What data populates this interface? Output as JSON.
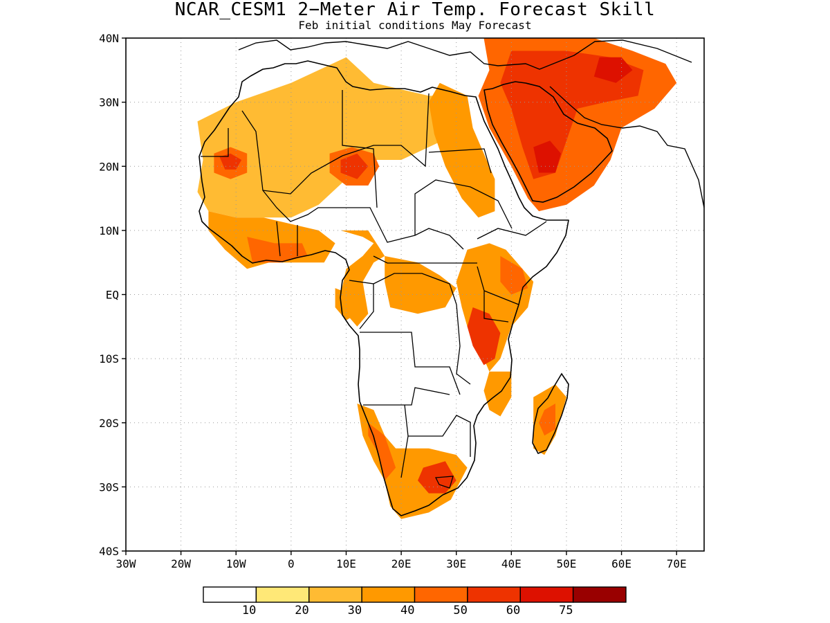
{
  "map": {
    "title": "NCAR_CESM1 2−Meter Air Temp. Forecast Skill",
    "subtitle": "Feb initial conditions  May Forecast",
    "lon_range": [
      -30,
      75
    ],
    "lat_range": [
      -40,
      40
    ],
    "grid": true,
    "lat_ticks": [
      {
        "value": 40,
        "label": "40N"
      },
      {
        "value": 30,
        "label": "30N"
      },
      {
        "value": 20,
        "label": "20N"
      },
      {
        "value": 10,
        "label": "10N"
      },
      {
        "value": 0,
        "label": "EQ"
      },
      {
        "value": -10,
        "label": "10S"
      },
      {
        "value": -20,
        "label": "20S"
      },
      {
        "value": -30,
        "label": "30S"
      },
      {
        "value": -40,
        "label": "40S"
      }
    ],
    "lon_ticks": [
      {
        "value": -30,
        "label": "30W"
      },
      {
        "value": -20,
        "label": "20W"
      },
      {
        "value": -10,
        "label": "10W"
      },
      {
        "value": 0,
        "label": "0"
      },
      {
        "value": 10,
        "label": "10E"
      },
      {
        "value": 20,
        "label": "20E"
      },
      {
        "value": 30,
        "label": "30E"
      },
      {
        "value": 40,
        "label": "40E"
      },
      {
        "value": 50,
        "label": "50E"
      },
      {
        "value": 60,
        "label": "60E"
      },
      {
        "value": 70,
        "label": "70E"
      }
    ]
  },
  "colorbar": {
    "colors": [
      "#ffffff",
      "#ffe877",
      "#ffbb33",
      "#ff9900",
      "#ff6600",
      "#ee3300",
      "#dd1100",
      "#990000"
    ],
    "labels": [
      "10",
      "20",
      "30",
      "40",
      "50",
      "60",
      "75"
    ]
  },
  "skill_regions": [
    {
      "level": 2,
      "points": [
        [
          -17,
          27
        ],
        [
          -10,
          30
        ],
        [
          0,
          33
        ],
        [
          5,
          35
        ],
        [
          10,
          37
        ],
        [
          15,
          33
        ],
        [
          20,
          32
        ],
        [
          25,
          31
        ],
        [
          30,
          31
        ],
        [
          30,
          25
        ],
        [
          25,
          23
        ],
        [
          20,
          21
        ],
        [
          15,
          21
        ],
        [
          10,
          18
        ],
        [
          5,
          14
        ],
        [
          0,
          12
        ],
        [
          -5,
          12
        ],
        [
          -10,
          12
        ],
        [
          -15,
          13
        ],
        [
          -17,
          16
        ],
        [
          -16,
          21
        ]
      ]
    },
    {
      "level": 4,
      "points": [
        [
          -14,
          22
        ],
        [
          -11,
          23
        ],
        [
          -8,
          22
        ],
        [
          -8,
          19
        ],
        [
          -11,
          18
        ],
        [
          -14,
          19
        ]
      ]
    },
    {
      "level": 5,
      "points": [
        [
          -13,
          21.5
        ],
        [
          -11,
          22
        ],
        [
          -9,
          21
        ],
        [
          -10,
          19.5
        ],
        [
          -12,
          19.5
        ]
      ]
    },
    {
      "level": 4,
      "points": [
        [
          7,
          22
        ],
        [
          11,
          23
        ],
        [
          15,
          22
        ],
        [
          16,
          20
        ],
        [
          14,
          17
        ],
        [
          10,
          17
        ],
        [
          7,
          19
        ]
      ]
    },
    {
      "level": 5,
      "points": [
        [
          9,
          21
        ],
        [
          12,
          22
        ],
        [
          14,
          20
        ],
        [
          12,
          18
        ],
        [
          9,
          19
        ]
      ]
    },
    {
      "level": 3,
      "points": [
        [
          -15,
          13
        ],
        [
          -10,
          12
        ],
        [
          -5,
          12
        ],
        [
          0,
          11
        ],
        [
          5,
          10
        ],
        [
          8,
          8
        ],
        [
          6,
          5
        ],
        [
          2,
          5
        ],
        [
          -4,
          5
        ],
        [
          -8,
          4
        ],
        [
          -12,
          7
        ],
        [
          -15,
          10
        ]
      ]
    },
    {
      "level": 4,
      "points": [
        [
          -8,
          9
        ],
        [
          -3,
          8
        ],
        [
          2,
          8
        ],
        [
          3,
          6
        ],
        [
          -2,
          5
        ],
        [
          -7,
          5
        ]
      ]
    },
    {
      "level": 3,
      "points": [
        [
          27,
          33
        ],
        [
          32,
          31
        ],
        [
          33,
          26
        ],
        [
          35,
          22
        ],
        [
          37,
          18
        ],
        [
          37,
          13
        ],
        [
          34,
          12
        ],
        [
          31,
          15
        ],
        [
          28,
          20
        ],
        [
          26,
          25
        ],
        [
          25,
          30
        ]
      ]
    },
    {
      "level": 4,
      "points": [
        [
          35,
          40
        ],
        [
          45,
          40
        ],
        [
          55,
          40
        ],
        [
          62,
          38
        ],
        [
          68,
          36
        ],
        [
          70,
          33
        ],
        [
          66,
          29
        ],
        [
          60,
          26
        ],
        [
          58,
          21
        ],
        [
          55,
          17
        ],
        [
          50,
          14
        ],
        [
          45,
          13
        ],
        [
          43,
          15
        ],
        [
          40,
          20
        ],
        [
          36,
          26
        ],
        [
          34,
          31
        ],
        [
          36,
          35
        ]
      ]
    },
    {
      "level": 5,
      "points": [
        [
          40,
          38
        ],
        [
          50,
          38
        ],
        [
          58,
          37
        ],
        [
          64,
          35
        ],
        [
          63,
          31
        ],
        [
          57,
          30
        ],
        [
          52,
          29
        ],
        [
          50,
          24
        ],
        [
          48,
          19
        ],
        [
          44,
          18
        ],
        [
          42,
          23
        ],
        [
          40,
          29
        ],
        [
          38,
          33
        ]
      ]
    },
    {
      "level": 6,
      "points": [
        [
          44,
          23
        ],
        [
          47,
          24
        ],
        [
          49,
          22
        ],
        [
          48,
          19
        ],
        [
          45,
          19
        ]
      ]
    },
    {
      "level": 6,
      "points": [
        [
          56,
          37
        ],
        [
          60,
          37
        ],
        [
          62,
          35
        ],
        [
          59,
          33
        ],
        [
          55,
          34
        ]
      ]
    },
    {
      "level": 3,
      "points": [
        [
          9,
          10
        ],
        [
          13,
          9
        ],
        [
          15,
          8
        ],
        [
          13,
          6
        ],
        [
          10,
          4
        ],
        [
          9,
          0
        ],
        [
          10,
          -3
        ],
        [
          12,
          -5
        ],
        [
          14,
          -3
        ],
        [
          13,
          2
        ],
        [
          15,
          5
        ],
        [
          17,
          6
        ],
        [
          14,
          10
        ]
      ]
    },
    {
      "level": 3,
      "points": [
        [
          17,
          6
        ],
        [
          23,
          5
        ],
        [
          27,
          3
        ],
        [
          30,
          1
        ],
        [
          28,
          -2
        ],
        [
          23,
          -3
        ],
        [
          18,
          -2
        ],
        [
          17,
          2
        ]
      ]
    },
    {
      "level": 3,
      "points": [
        [
          32,
          7
        ],
        [
          36,
          8
        ],
        [
          39,
          7
        ],
        [
          42,
          4
        ],
        [
          44,
          2
        ],
        [
          43,
          -2
        ],
        [
          40,
          -5
        ],
        [
          38,
          -10
        ],
        [
          36,
          -12
        ],
        [
          34,
          -8
        ],
        [
          32,
          -5
        ],
        [
          31,
          -2
        ],
        [
          30,
          2
        ]
      ]
    },
    {
      "level": 5,
      "points": [
        [
          33,
          -2
        ],
        [
          36,
          -3
        ],
        [
          38,
          -6
        ],
        [
          37,
          -10
        ],
        [
          35,
          -11
        ],
        [
          33,
          -8
        ],
        [
          32,
          -5
        ]
      ]
    },
    {
      "level": 4,
      "points": [
        [
          38,
          6
        ],
        [
          42,
          4
        ],
        [
          43,
          1
        ],
        [
          40,
          0
        ],
        [
          38,
          2
        ]
      ]
    },
    {
      "level": 3,
      "points": [
        [
          36,
          -12
        ],
        [
          40,
          -12
        ],
        [
          40,
          -16
        ],
        [
          38,
          -19
        ],
        [
          36,
          -18
        ],
        [
          35,
          -15
        ]
      ]
    },
    {
      "level": 3,
      "points": [
        [
          44,
          -16
        ],
        [
          48,
          -14
        ],
        [
          50,
          -16
        ],
        [
          48,
          -22
        ],
        [
          46,
          -25
        ],
        [
          44,
          -24
        ],
        [
          44,
          -20
        ]
      ]
    },
    {
      "level": 4,
      "points": [
        [
          46,
          -18
        ],
        [
          48,
          -17
        ],
        [
          48,
          -21
        ],
        [
          46,
          -22
        ],
        [
          45,
          -20
        ]
      ]
    },
    {
      "level": 3,
      "points": [
        [
          12,
          -17
        ],
        [
          15,
          -18
        ],
        [
          17,
          -22
        ],
        [
          19,
          -24
        ],
        [
          22,
          -24
        ],
        [
          25,
          -24
        ],
        [
          30,
          -25
        ],
        [
          32,
          -27
        ],
        [
          29,
          -32
        ],
        [
          25,
          -34
        ],
        [
          20,
          -35
        ],
        [
          18,
          -33
        ],
        [
          17,
          -29
        ],
        [
          15,
          -26
        ],
        [
          13,
          -22
        ]
      ]
    },
    {
      "level": 4,
      "points": [
        [
          14,
          -20
        ],
        [
          17,
          -22
        ],
        [
          19,
          -27
        ],
        [
          17,
          -29
        ],
        [
          16,
          -25
        ],
        [
          14,
          -22
        ]
      ]
    },
    {
      "level": 5,
      "points": [
        [
          24,
          -27
        ],
        [
          28,
          -26
        ],
        [
          30,
          -29
        ],
        [
          28,
          -31
        ],
        [
          25,
          -31
        ],
        [
          23,
          -29
        ]
      ]
    },
    {
      "level": 3,
      "points": [
        [
          8,
          1
        ],
        [
          11,
          0
        ],
        [
          12,
          -3
        ],
        [
          10,
          -4
        ],
        [
          8,
          -2
        ]
      ]
    }
  ]
}
